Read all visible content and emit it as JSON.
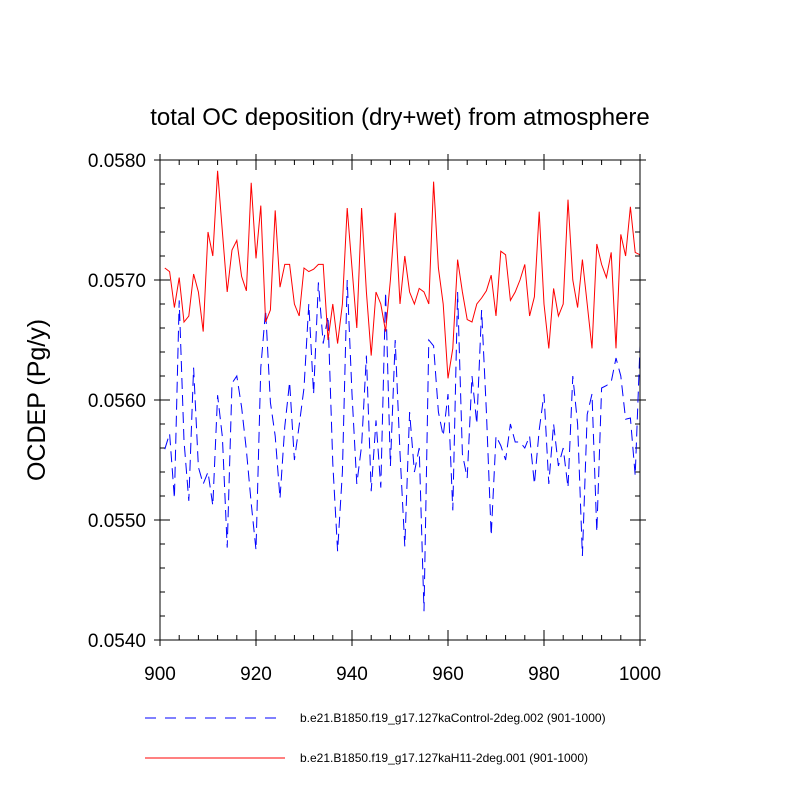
{
  "chart_data": {
    "type": "line",
    "title": "total OC deposition (dry+wet) from atmosphere",
    "xlabel": "",
    "ylabel": "OCDEP  (Pg/y)",
    "xlim": [
      900,
      1000
    ],
    "ylim": [
      0.054,
      0.058
    ],
    "x_ticks": [
      900,
      920,
      940,
      960,
      980,
      1000
    ],
    "x_tick_labels": [
      "900",
      "920",
      "940",
      "960",
      "980",
      "1000"
    ],
    "y_ticks": [
      0.054,
      0.055,
      0.056,
      0.057,
      0.058
    ],
    "y_tick_labels": [
      "0.0540",
      "0.0550",
      "0.0560",
      "0.0570",
      "0.0580"
    ],
    "x": [
      901,
      902,
      903,
      904,
      905,
      906,
      907,
      908,
      909,
      910,
      911,
      912,
      913,
      914,
      915,
      916,
      917,
      918,
      919,
      920,
      921,
      922,
      923,
      924,
      925,
      926,
      927,
      928,
      929,
      930,
      931,
      932,
      933,
      934,
      935,
      936,
      937,
      938,
      939,
      940,
      941,
      942,
      943,
      944,
      945,
      946,
      947,
      948,
      949,
      950,
      951,
      952,
      953,
      954,
      955,
      956,
      957,
      958,
      959,
      960,
      961,
      962,
      963,
      964,
      965,
      966,
      967,
      968,
      969,
      970,
      971,
      972,
      973,
      974,
      975,
      976,
      977,
      978,
      979,
      980,
      981,
      982,
      983,
      984,
      985,
      986,
      987,
      988,
      989,
      990,
      991,
      992,
      993,
      994,
      995,
      996,
      997,
      998,
      999,
      1000
    ],
    "series": [
      {
        "name": "b.e21.B1850.f19_g17.127kaControl-2deg.002 (901-1000)",
        "color": "#0000ff",
        "dash": "dashed",
        "values": [
          0.05559,
          0.05572,
          0.05518,
          0.05683,
          0.05566,
          0.05516,
          0.05627,
          0.05544,
          0.0553,
          0.0554,
          0.05512,
          0.05604,
          0.05569,
          0.05477,
          0.05614,
          0.0562,
          0.05594,
          0.05558,
          0.05514,
          0.05475,
          0.05627,
          0.05675,
          0.05598,
          0.0557,
          0.05518,
          0.05578,
          0.05615,
          0.0555,
          0.05579,
          0.0561,
          0.0568,
          0.05605,
          0.05698,
          0.05647,
          0.0567,
          0.05547,
          0.05474,
          0.0554,
          0.057,
          0.05605,
          0.0553,
          0.05562,
          0.05637,
          0.05524,
          0.05583,
          0.05527,
          0.0569,
          0.05545,
          0.0565,
          0.05556,
          0.05478,
          0.0559,
          0.0554,
          0.0556,
          0.05424,
          0.0565,
          0.05645,
          0.0559,
          0.0557,
          0.05605,
          0.05508,
          0.0569,
          0.05555,
          0.05535,
          0.0562,
          0.0558,
          0.05675,
          0.0559,
          0.05487,
          0.0557,
          0.05562,
          0.0555,
          0.0558,
          0.05565,
          0.05565,
          0.0556,
          0.0557,
          0.0553,
          0.05575,
          0.05605,
          0.0553,
          0.0558,
          0.05545,
          0.0556,
          0.05527,
          0.0562,
          0.0558,
          0.0547,
          0.05588,
          0.05605,
          0.0549,
          0.0561,
          0.05612,
          0.05615,
          0.05635,
          0.0562,
          0.05584,
          0.05585,
          0.05537,
          0.05645
        ]
      },
      {
        "name": "b.e21.B1850.f19_g17.127kaH11-2deg.001 (901-1000)",
        "color": "#ff0000",
        "dash": "solid",
        "values": [
          0.0571,
          0.05707,
          0.05677,
          0.05702,
          0.05665,
          0.0567,
          0.05705,
          0.0569,
          0.05657,
          0.0574,
          0.0572,
          0.05791,
          0.0574,
          0.0569,
          0.05725,
          0.05733,
          0.05703,
          0.05691,
          0.05781,
          0.05718,
          0.05762,
          0.05665,
          0.05675,
          0.05758,
          0.05694,
          0.05713,
          0.05713,
          0.0568,
          0.0567,
          0.0571,
          0.05707,
          0.05709,
          0.05713,
          0.05713,
          0.0565,
          0.0568,
          0.05647,
          0.0568,
          0.0576,
          0.0571,
          0.0566,
          0.0576,
          0.0569,
          0.05637,
          0.0569,
          0.0568,
          0.05657,
          0.057,
          0.05756,
          0.0568,
          0.0572,
          0.0569,
          0.0568,
          0.05693,
          0.0569,
          0.0568,
          0.05782,
          0.0571,
          0.0568,
          0.05618,
          0.05643,
          0.05717,
          0.0569,
          0.05667,
          0.05665,
          0.0568,
          0.05685,
          0.05691,
          0.05704,
          0.0567,
          0.05724,
          0.05721,
          0.05683,
          0.0569,
          0.057,
          0.05713,
          0.0567,
          0.05686,
          0.05757,
          0.0568,
          0.05643,
          0.05693,
          0.0567,
          0.0568,
          0.05767,
          0.057,
          0.05677,
          0.05717,
          0.0568,
          0.05643,
          0.0573,
          0.05713,
          0.05702,
          0.05723,
          0.05643,
          0.05738,
          0.0572,
          0.05761,
          0.05723,
          0.05721
        ]
      }
    ],
    "legend_position": "bottom"
  }
}
